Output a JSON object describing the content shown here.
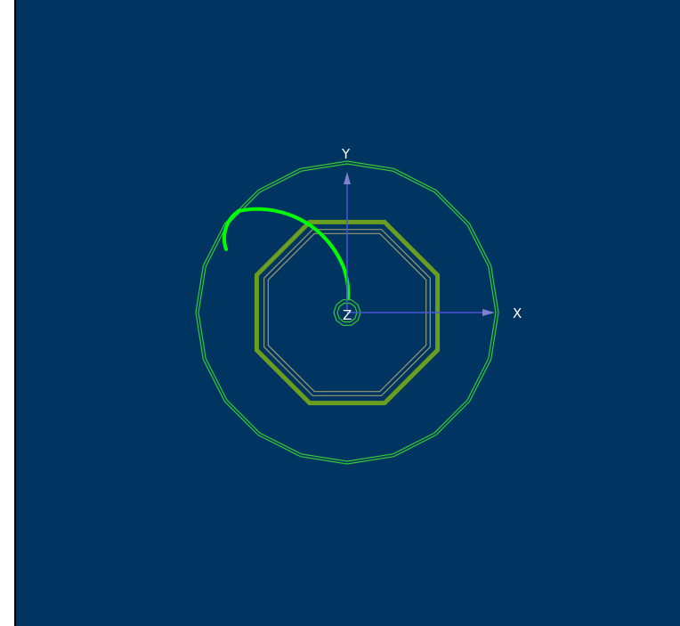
{
  "viewer": {
    "background_color": "#003461",
    "axes": {
      "x_label": "X",
      "y_label": "Y",
      "z_label": "Z",
      "axis_color": "#4a55d8",
      "arrow_color": "#8080d0"
    },
    "geometry": {
      "outer_polygon_color": "#33cc33",
      "octagon_thick_color": "#6b9e1f",
      "octagon_thin_color": "#9a9a70",
      "inner_ring_color": "#33cc33",
      "track_color": "#00ff00"
    }
  }
}
